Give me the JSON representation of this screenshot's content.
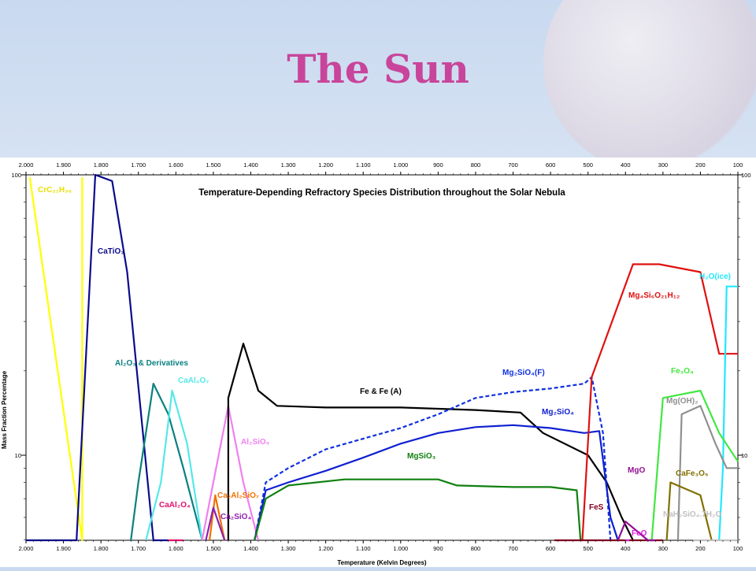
{
  "slide": {
    "title": "The Sun"
  },
  "chart_data": {
    "type": "line",
    "title": "Temperature-Depending Refractory Species Distribution throughout the Solar Nebula",
    "xlabel": "Temperature (Kelvin Degrees)",
    "ylabel": "Mass Fraction Percentage",
    "x_ticks": [
      "2.000",
      "1.900",
      "1.800",
      "1.700",
      "1.600",
      "1.500",
      "1.400",
      "1.300",
      "1.200",
      "1.100",
      "1.000",
      "900",
      "800",
      "700",
      "600",
      "500",
      "400",
      "300",
      "200",
      "100"
    ],
    "y_ticks": [
      "100",
      "10"
    ],
    "xlim": [
      2000,
      100
    ],
    "y_scale": "log",
    "series": [
      {
        "name": "CrC21H36",
        "label_text": "CrC₂₁H₃₆",
        "color": "#ffff00",
        "style": "solid",
        "x": [
          1850,
          1850,
          1990
        ],
        "y": [
          98,
          3.3,
          98
        ]
      },
      {
        "name": "CaTiO3",
        "label_text": "CaTiO₃",
        "color": "#0a0a8c",
        "style": "solid",
        "x": [
          2000,
          1865,
          1815,
          1770,
          1730,
          1660,
          1620
        ],
        "y": [
          4.0,
          4.0,
          100,
          95,
          45,
          4.8,
          4.2
        ]
      },
      {
        "name": "Al2O3 & Derivatives",
        "label_text": "Al₂O₃ & Derivatives",
        "color": "#0a8080",
        "style": "solid",
        "x": [
          1720,
          1700,
          1660,
          1620,
          1580,
          1530
        ],
        "y": [
          3.3,
          8,
          18,
          14,
          9,
          5
        ]
      },
      {
        "name": "CaAl4O7",
        "label_text": "CaAl₄O₇",
        "color": "#55e8e8",
        "style": "solid",
        "x": [
          1680,
          1640,
          1610,
          1570,
          1530
        ],
        "y": [
          3.3,
          8,
          17,
          11,
          5
        ]
      },
      {
        "name": "CaAl2O4",
        "label_text": "CaAl₂O₄",
        "color": "#e01070",
        "style": "solid",
        "x": [
          1620,
          1600,
          1580
        ],
        "y": [
          3.5,
          4.3,
          3.6
        ]
      },
      {
        "name": "Al2SiO5",
        "label_text": "Al₂SiO₅",
        "color": "#f080f0",
        "style": "solid",
        "x": [
          1530,
          1500,
          1460,
          1420,
          1380
        ],
        "y": [
          4.5,
          8,
          15,
          8,
          4.4
        ]
      },
      {
        "name": "Ca2Al2SiO7",
        "label_text": "Ca₂Al₂SiO₇",
        "color": "#f07000",
        "style": "solid",
        "x": [
          1510,
          1495,
          1470
        ],
        "y": [
          3.5,
          7.2,
          3.5
        ]
      },
      {
        "name": "Ca2SiO4",
        "label_text": "Ca₂SiO₄",
        "color": "#9020b0",
        "style": "solid",
        "x": [
          1520,
          1500,
          1470
        ],
        "y": [
          3.5,
          6.5,
          3.5
        ]
      },
      {
        "name": "Fe & Fe (A)",
        "label_text": "Fe & Fe (A)",
        "color": "#000000",
        "style": "solid",
        "x": [
          1460,
          1460,
          1420,
          1380,
          1330,
          1200,
          1000,
          800,
          680,
          620,
          500,
          450,
          410,
          380
        ],
        "y": [
          3.3,
          16,
          25,
          17,
          15,
          14.8,
          14.8,
          14.5,
          14.2,
          12,
          10,
          8,
          6,
          3.3
        ]
      },
      {
        "name": "Mg2SiO4(F)",
        "label_text": "Mg₂SiO₄(F)",
        "color": "#1030e0",
        "style": "dashed",
        "x": [
          1390,
          1360,
          1300,
          1200,
          1000,
          900,
          800,
          700,
          600,
          510,
          490,
          460,
          440
        ],
        "y": [
          3.3,
          8,
          9,
          10.5,
          12.5,
          14,
          16,
          16.8,
          17.3,
          18,
          19,
          12,
          3.3
        ]
      },
      {
        "name": "Mg2SiO4",
        "label_text": "Mg₂SiO₄",
        "color": "#1020d0",
        "style": "solid",
        "x": [
          1390,
          1360,
          1300,
          1200,
          1100,
          1000,
          900,
          800,
          700,
          600,
          510,
          470,
          440,
          420
        ],
        "y": [
          3.3,
          7.5,
          8,
          8.8,
          9.8,
          11,
          12,
          12.6,
          12.8,
          12.5,
          12,
          12.2,
          6,
          3.3
        ]
      },
      {
        "name": "MgSiO3",
        "label_text": "MgSiO₃",
        "color": "#108010",
        "style": "solid",
        "x": [
          1390,
          1360,
          1300,
          1150,
          1000,
          900,
          850,
          700,
          600,
          530,
          520
        ],
        "y": [
          3.3,
          7,
          7.8,
          8.2,
          8.2,
          8.2,
          7.8,
          7.7,
          7.7,
          7.5,
          3.3
        ]
      },
      {
        "name": "Mg4Si6O21H12",
        "label_text": "Mg₄Si₆O₂₁H₁₂",
        "color": "#e01010",
        "style": "solid",
        "x": [
          515,
          490,
          380,
          360,
          310,
          200,
          150,
          100
        ],
        "y": [
          3.3,
          19,
          48,
          48,
          48,
          45,
          23,
          23
        ]
      },
      {
        "name": "H2O(ice)",
        "label_text": "H₂O(ice)",
        "color": "#20e8ff",
        "style": "solid",
        "x": [
          150,
          140,
          130,
          100
        ],
        "y": [
          3.3,
          9,
          40,
          40
        ]
      },
      {
        "name": "Fe3O4",
        "label_text": "Fe₃O₄",
        "color": "#40e840",
        "style": "solid",
        "x": [
          330,
          300,
          200,
          150,
          100
        ],
        "y": [
          3.3,
          16,
          17,
          12,
          9.5
        ]
      },
      {
        "name": "Mg(OH)2",
        "label_text": "Mg(OH)₂",
        "color": "#909090",
        "style": "solid",
        "x": [
          260,
          250,
          200,
          160,
          130,
          100
        ],
        "y": [
          3.3,
          14,
          15,
          11,
          9,
          9
        ]
      },
      {
        "name": "CaFe3O5",
        "label_text": "CaFe₃O₅",
        "color": "#807000",
        "style": "solid",
        "x": [
          290,
          280,
          200,
          170
        ],
        "y": [
          3.3,
          8,
          7.2,
          3.3
        ]
      },
      {
        "name": "NaH2SiO4.7H2O",
        "label_text": "NaH₂SiO₄.7H₂O",
        "color": "#c0c0c0",
        "style": "solid",
        "x": [
          220,
          200,
          150,
          100
        ],
        "y": [
          3.3,
          3.6,
          3.5,
          3.5
        ]
      },
      {
        "name": "FeS",
        "label_text": "FeS",
        "color": "#800020",
        "style": "solid",
        "x": [
          590,
          560,
          500,
          400,
          360,
          300
        ],
        "y": [
          3.3,
          4.1,
          4.5,
          4.5,
          4.5,
          4.2
        ]
      },
      {
        "name": "MgO",
        "label_text": "MgO",
        "color": "#901090",
        "style": "solid",
        "x": [
          420,
          400,
          340,
          320
        ],
        "y": [
          3.3,
          5.8,
          4.5,
          3.3
        ]
      },
      {
        "name": "FeO",
        "label_text": "FeO",
        "color": "#e020e0",
        "style": "solid",
        "x": [
          400,
          390
        ],
        "y": [
          3.3,
          3.6
        ]
      }
    ]
  }
}
